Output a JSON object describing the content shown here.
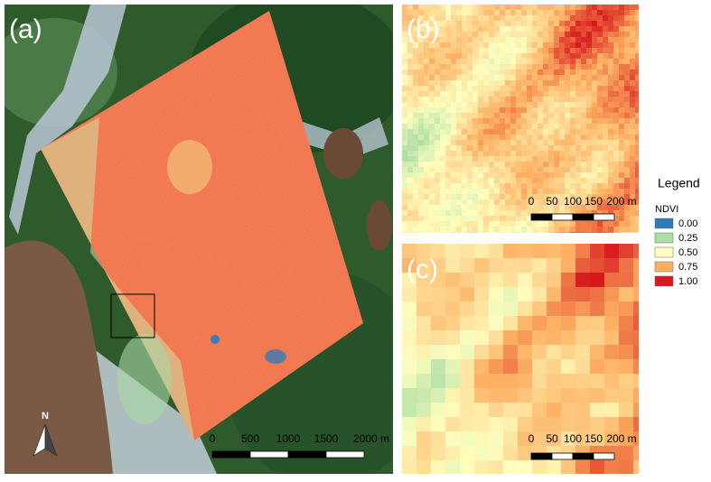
{
  "panels": {
    "a": {
      "label": "(a)",
      "scale_bar": [
        "0",
        "500",
        "1000",
        "1500",
        "2000 m"
      ],
      "north": "N"
    },
    "b": {
      "label": "(b)",
      "scale_bar": [
        "0",
        "50",
        "100",
        "150",
        "200 m"
      ]
    },
    "c": {
      "label": "(c)",
      "scale_bar": [
        "0",
        "50",
        "100",
        "150",
        "200 m"
      ]
    }
  },
  "legend": {
    "title": "Legend",
    "subtitle": "NDVI",
    "items": [
      {
        "label": "0.00",
        "color": "#2c7bb6"
      },
      {
        "label": "0.25",
        "color": "#abdda4"
      },
      {
        "label": "0.50",
        "color": "#ffffbf"
      },
      {
        "label": "0.75",
        "color": "#fdae61"
      },
      {
        "label": "1.00",
        "color": "#d7191c"
      }
    ]
  }
}
